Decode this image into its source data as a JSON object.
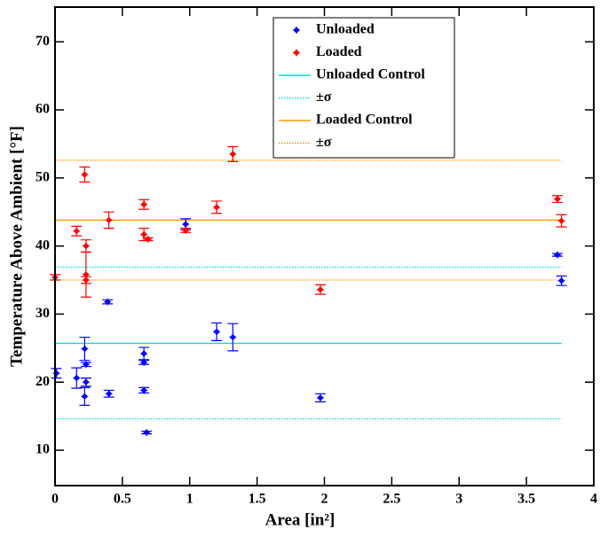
{
  "chart_data": {
    "type": "scatter",
    "xlabel": "Area [in²]",
    "ylabel": "Temperature Above Ambient [°F]",
    "xlim": [
      0,
      4
    ],
    "ylim": [
      4.8,
      75.1
    ],
    "xticks": [
      0,
      0.5,
      1,
      1.5,
      2,
      2.5,
      3,
      3.5,
      4
    ],
    "yticks": [
      10,
      20,
      30,
      40,
      50,
      60,
      70
    ],
    "legend": "top-center",
    "series": [
      {
        "name": "Unloaded",
        "color": "#0000ff",
        "x": [
          0.01,
          0.16,
          0.22,
          0.23,
          0.23,
          0.22,
          0.39,
          0.4,
          0.66,
          0.66,
          0.66,
          0.68,
          0.97,
          1.2,
          1.32,
          1.97,
          3.73,
          3.76
        ],
        "values": [
          21.3,
          20.6,
          24.9,
          22.6,
          20.0,
          17.9,
          31.8,
          18.3,
          24.2,
          22.9,
          18.8,
          12.6,
          43.2,
          27.4,
          26.6,
          17.7,
          38.7,
          34.9
        ],
        "errors": [
          0.7,
          1.5,
          1.7,
          0.3,
          0.6,
          1.3,
          0.3,
          0.5,
          0.9,
          0.3,
          0.4,
          0.2,
          0.8,
          1.3,
          2.0,
          0.6,
          0.2,
          0.7
        ]
      },
      {
        "name": "Loaded",
        "color": "#ff0000",
        "x": [
          0.0,
          0.16,
          0.22,
          0.23,
          0.23,
          0.23,
          0.4,
          0.66,
          0.66,
          0.69,
          0.97,
          1.2,
          1.32,
          1.97,
          3.73,
          3.76
        ],
        "values": [
          35.4,
          42.2,
          50.5,
          40.0,
          35.8,
          35.0,
          43.8,
          46.1,
          41.7,
          41.0,
          42.3,
          45.7,
          53.5,
          33.6,
          46.9,
          43.7
        ],
        "errors": [
          0.4,
          0.7,
          1.1,
          0.9,
          3.3,
          0.5,
          1.2,
          0.7,
          0.9,
          0.2,
          0.3,
          0.9,
          1.1,
          0.7,
          0.5,
          0.9
        ]
      }
    ],
    "reference_lines": [
      {
        "name": "Unloaded Control",
        "color": "#00dede",
        "style": "solid",
        "xrange": [
          0,
          3.76
        ],
        "values": [
          25.7
        ]
      },
      {
        "name": "±σ",
        "color": "#00dede",
        "style": "dotted",
        "xrange": [
          0,
          3.76
        ],
        "values": [
          36.9,
          14.6
        ]
      },
      {
        "name": "Loaded Control",
        "color": "#ff9900",
        "style": "solid",
        "xrange": [
          0,
          3.76
        ],
        "values": [
          43.8
        ]
      },
      {
        "name": "±σ",
        "color": "#ff9900",
        "style": "dotted",
        "xrange": [
          0,
          3.76
        ],
        "values": [
          52.6,
          35.0
        ]
      }
    ]
  }
}
